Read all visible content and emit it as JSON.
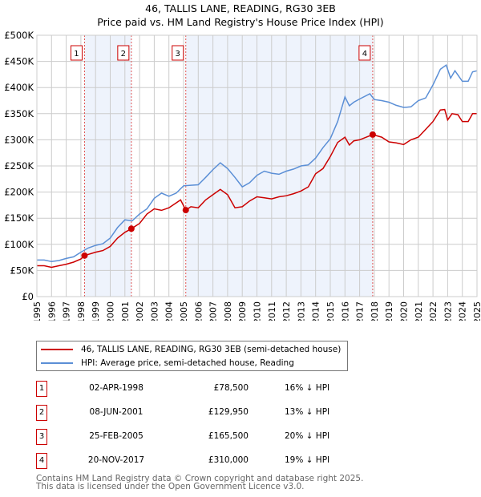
{
  "chart_data": {
    "type": "line",
    "title": "46, TALLIS LANE, READING, RG30 3EB",
    "subtitle": "Price paid vs. HM Land Registry's House Price Index (HPI)",
    "xlim": [
      1995,
      2025
    ],
    "ylim": [
      0,
      500000
    ],
    "x_ticks": [
      "1995",
      "1996",
      "1997",
      "1998",
      "1999",
      "2000",
      "2001",
      "2002",
      "2003",
      "2004",
      "2005",
      "2006",
      "2007",
      "2008",
      "2009",
      "2010",
      "2011",
      "2012",
      "2013",
      "2014",
      "2015",
      "2016",
      "2017",
      "2018",
      "2019",
      "2020",
      "2021",
      "2022",
      "2023",
      "2024",
      "2025"
    ],
    "y_ticks": [
      {
        "v": 0,
        "label": "£0"
      },
      {
        "v": 50000,
        "label": "£50K"
      },
      {
        "v": 100000,
        "label": "£100K"
      },
      {
        "v": 150000,
        "label": "£150K"
      },
      {
        "v": 200000,
        "label": "£200K"
      },
      {
        "v": 250000,
        "label": "£250K"
      },
      {
        "v": 300000,
        "label": "£300K"
      },
      {
        "v": 350000,
        "label": "£350K"
      },
      {
        "v": 400000,
        "label": "£400K"
      },
      {
        "v": 450000,
        "label": "£450K"
      },
      {
        "v": 500000,
        "label": "£500K"
      }
    ],
    "grid": true,
    "shaded_ranges": [
      [
        1998.25,
        2001.44
      ],
      [
        2005.15,
        2017.89
      ]
    ],
    "series": [
      {
        "name": "46, TALLIS LANE, READING, RG30 3EB (semi-detached house)",
        "color": "#cc0000",
        "x": [
          1995,
          1995.5,
          1996,
          1996.5,
          1997,
          1997.5,
          1998,
          1998.25,
          1999,
          1999.5,
          2000,
          2000.5,
          2001,
          2001.44,
          2002,
          2002.5,
          2003,
          2003.5,
          2004,
          2004.8,
          2005.15,
          2005.5,
          2006,
          2006.5,
          2007,
          2007.5,
          2008,
          2008.5,
          2009,
          2009.5,
          2010,
          2010.5,
          2011,
          2011.5,
          2012,
          2012.5,
          2013,
          2013.5,
          2014,
          2014.5,
          2015,
          2015.5,
          2016,
          2016.3,
          2016.6,
          2017,
          2017.89,
          2018.5,
          2019,
          2019.5,
          2020,
          2020.5,
          2021,
          2021.5,
          2022,
          2022.5,
          2022.8,
          2023,
          2023.3,
          2023.7,
          2024,
          2024.4,
          2024.7,
          2025
        ],
        "y": [
          59000,
          59000,
          56000,
          59000,
          62000,
          66000,
          72000,
          78500,
          85000,
          88000,
          96000,
          112000,
          123000,
          129950,
          140000,
          158000,
          168000,
          165000,
          170000,
          185000,
          165500,
          172000,
          170000,
          185000,
          195000,
          205000,
          195000,
          170000,
          172000,
          183000,
          191000,
          189000,
          187000,
          191000,
          193000,
          197000,
          202000,
          210000,
          235000,
          245000,
          268000,
          295000,
          305000,
          290000,
          298000,
          300000,
          310000,
          305000,
          296000,
          294000,
          291000,
          300000,
          305000,
          320000,
          335000,
          357000,
          358000,
          338000,
          350000,
          348000,
          335000,
          335000,
          350000,
          350000
        ]
      },
      {
        "name": "HPI: Average price, semi-detached house, Reading",
        "color": "#5b8fd6",
        "x": [
          1995,
          1995.5,
          1996,
          1996.5,
          1997,
          1997.5,
          1998,
          1998.5,
          1999,
          1999.5,
          2000,
          2000.5,
          2001,
          2001.5,
          2002,
          2002.5,
          2003,
          2003.5,
          2004,
          2004.5,
          2005,
          2005.5,
          2006,
          2006.5,
          2007,
          2007.5,
          2008,
          2008.5,
          2009,
          2009.5,
          2010,
          2010.5,
          2011,
          2011.5,
          2012,
          2012.5,
          2013,
          2013.5,
          2014,
          2014.5,
          2015,
          2015.5,
          2016,
          2016.3,
          2016.6,
          2017,
          2017.7,
          2018,
          2018.5,
          2019,
          2019.5,
          2020,
          2020.5,
          2021,
          2021.5,
          2022,
          2022.5,
          2022.9,
          2023.2,
          2023.5,
          2024,
          2024.4,
          2024.7,
          2025
        ],
        "y": [
          70000,
          70000,
          67000,
          69000,
          73000,
          76000,
          85000,
          93000,
          98000,
          101000,
          112000,
          132000,
          147000,
          145000,
          158000,
          168000,
          188000,
          198000,
          192000,
          198000,
          212000,
          213000,
          214000,
          228000,
          243000,
          256000,
          245000,
          228000,
          210000,
          218000,
          232000,
          240000,
          236000,
          234000,
          240000,
          244000,
          250000,
          252000,
          265000,
          285000,
          302000,
          335000,
          382000,
          365000,
          372000,
          378000,
          388000,
          377000,
          375000,
          372000,
          366000,
          362000,
          363000,
          375000,
          380000,
          405000,
          435000,
          443000,
          418000,
          432000,
          412000,
          412000,
          430000,
          432000
        ]
      }
    ],
    "sales": [
      {
        "n": "1",
        "year": 1998.25,
        "price": 78500
      },
      {
        "n": "2",
        "year": 2001.44,
        "price": 129950
      },
      {
        "n": "3",
        "year": 2005.15,
        "price": 165500
      },
      {
        "n": "4",
        "year": 2017.89,
        "price": 310000
      }
    ]
  },
  "legend": {
    "property": "46, TALLIS LANE, READING, RG30 3EB (semi-detached house)",
    "hpi": "HPI: Average price, semi-detached house, Reading"
  },
  "table": [
    {
      "n": "1",
      "date": "02-APR-1998",
      "price": "£78,500",
      "hpi": "16% ↓ HPI"
    },
    {
      "n": "2",
      "date": "08-JUN-2001",
      "price": "£129,950",
      "hpi": "13% ↓ HPI"
    },
    {
      "n": "3",
      "date": "25-FEB-2005",
      "price": "£165,500",
      "hpi": "20% ↓ HPI"
    },
    {
      "n": "4",
      "date": "20-NOV-2017",
      "price": "£310,000",
      "hpi": "19% ↓ HPI"
    }
  ],
  "footer": {
    "line1": "Contains HM Land Registry data © Crown copyright and database right 2025.",
    "line2": "This data is licensed under the Open Government Licence v3.0."
  }
}
